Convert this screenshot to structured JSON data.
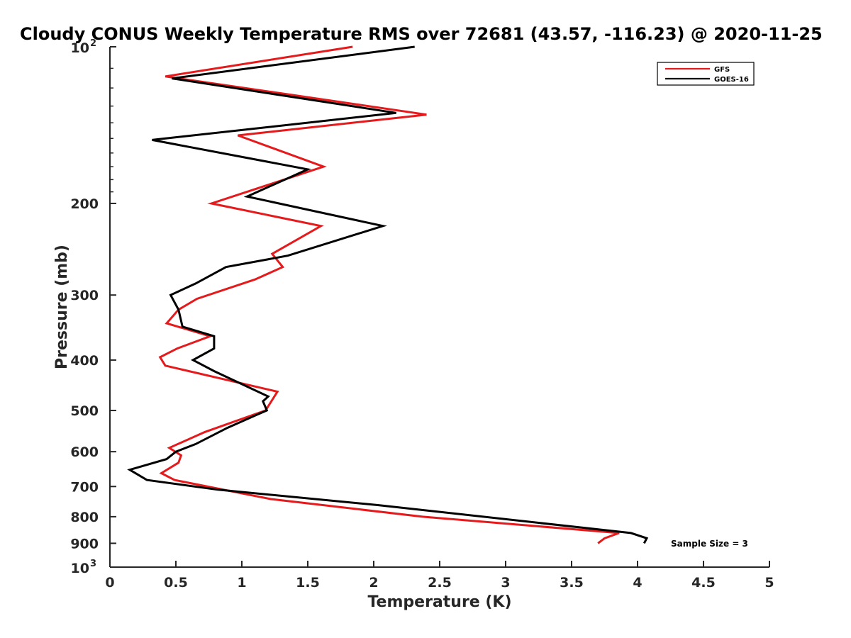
{
  "chart_data": {
    "type": "line",
    "title": "Cloudy CONUS Weekly Temperature RMS over 72681 (43.57, -116.23) @ 2020-11-25",
    "xlabel": "Temperature (K)",
    "ylabel": "Pressure (mb)",
    "xlim": [
      0,
      5
    ],
    "ylim": [
      100,
      1000
    ],
    "y_scale": "log",
    "y_reversed": true,
    "x_ticks": [
      "0",
      "0.5",
      "1",
      "1.5",
      "2",
      "2.5",
      "3",
      "3.5",
      "4",
      "4.5",
      "5"
    ],
    "y_ticks": [
      {
        "value": 100,
        "base": "10",
        "sup": "2"
      },
      {
        "value": 200,
        "label": "200"
      },
      {
        "value": 300,
        "label": "300"
      },
      {
        "value": 400,
        "label": "400"
      },
      {
        "value": 500,
        "label": "500"
      },
      {
        "value": 600,
        "label": "600"
      },
      {
        "value": 700,
        "label": "700"
      },
      {
        "value": 800,
        "label": "800"
      },
      {
        "value": 900,
        "label": "900"
      },
      {
        "value": 1000,
        "base": "10",
        "sup": "3"
      }
    ],
    "grid": false,
    "legend_position": "top-right",
    "annotation": "Sample Size = 3",
    "series": [
      {
        "name": "GFS",
        "color": "#e41a1c",
        "x": [
          1.84,
          0.42,
          2.4,
          0.97,
          1.62,
          0.77,
          1.6,
          1.23,
          1.31,
          1.1,
          0.66,
          0.52,
          0.43,
          0.76,
          0.51,
          0.38,
          0.42,
          1.27,
          1.18,
          0.72,
          0.45,
          0.54,
          0.52,
          0.39,
          0.49,
          1.22,
          2.37,
          3.86,
          3.75,
          3.7
        ],
        "y": [
          100,
          114,
          135,
          148,
          170,
          200,
          221,
          250,
          265,
          280,
          305,
          320,
          340,
          360,
          380,
          395,
          410,
          460,
          500,
          550,
          590,
          610,
          630,
          660,
          680,
          740,
          800,
          860,
          880,
          900
        ]
      },
      {
        "name": "GOES-16",
        "color": "#000000",
        "x": [
          2.31,
          0.47,
          2.17,
          0.32,
          1.5,
          1.04,
          2.07,
          1.35,
          0.88,
          0.65,
          0.46,
          0.52,
          0.55,
          0.79,
          0.79,
          0.63,
          0.79,
          1.2,
          1.16,
          1.19,
          1.11,
          0.89,
          0.65,
          0.5,
          0.43,
          0.15,
          0.28,
          0.82,
          2.03,
          3.95,
          4.07,
          4.05
        ],
        "y": [
          100,
          115,
          134,
          151,
          172,
          194,
          221,
          252,
          265,
          285,
          300,
          320,
          345,
          360,
          380,
          400,
          420,
          470,
          480,
          500,
          510,
          540,
          580,
          600,
          620,
          650,
          680,
          710,
          760,
          860,
          880,
          900
        ]
      }
    ]
  }
}
